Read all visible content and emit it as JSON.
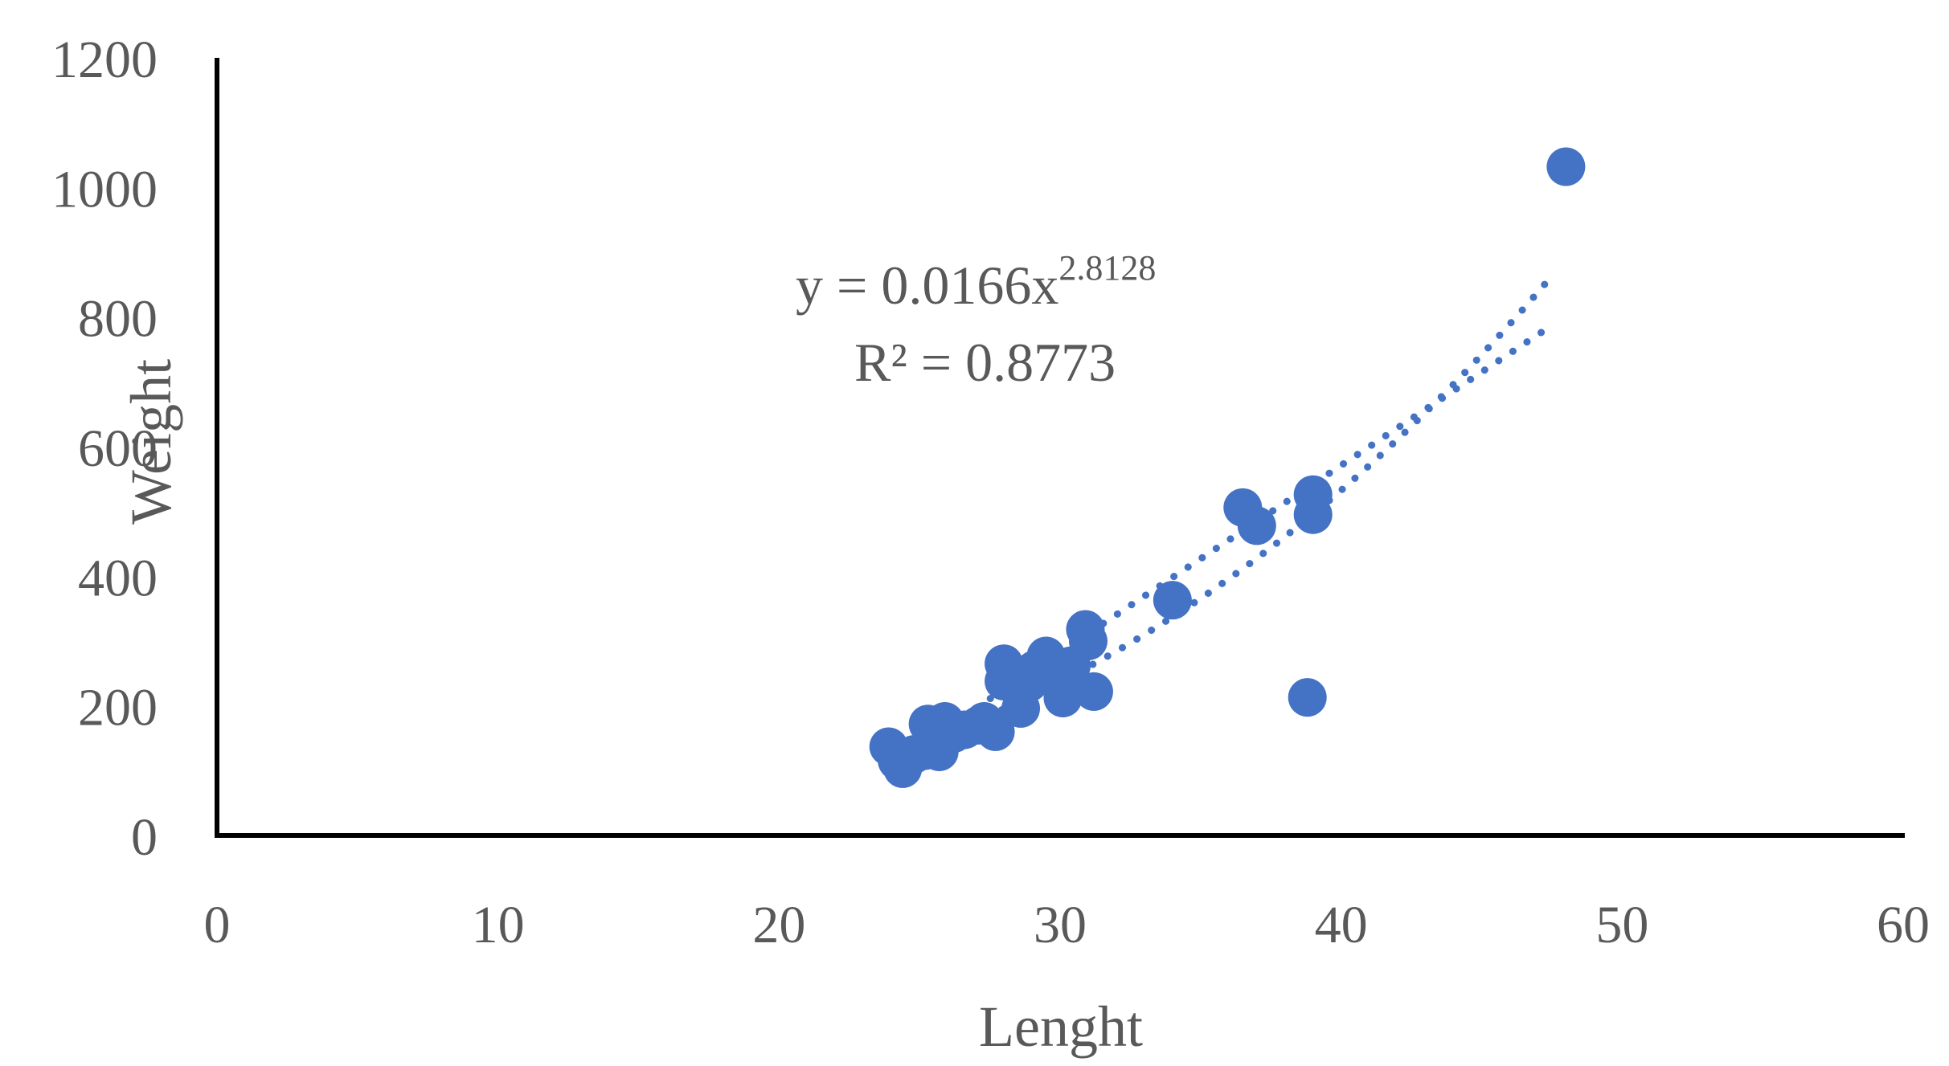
{
  "chart_data": {
    "type": "scatter",
    "xlabel": "Lenght",
    "ylabel": "Weight",
    "xlim": [
      0,
      60
    ],
    "ylim": [
      0,
      1200
    ],
    "x_ticks": [
      0,
      10,
      20,
      30,
      40,
      50,
      60
    ],
    "y_ticks": [
      0,
      200,
      400,
      600,
      800,
      1000,
      1200
    ],
    "x_tick_labels": [
      "0",
      "10",
      "20",
      "30",
      "40",
      "50",
      "60"
    ],
    "y_tick_labels": [
      "0",
      "200",
      "400",
      "600",
      "800",
      "1000",
      "1200"
    ],
    "grid": false,
    "legend": "none",
    "marker_color": "#4472C4",
    "trendline_color": "#4472C4",
    "text_color": "#595959",
    "axis_color": "#000000",
    "points": [
      {
        "x": 23.9,
        "y": 137
      },
      {
        "x": 24.2,
        "y": 115
      },
      {
        "x": 24.4,
        "y": 103
      },
      {
        "x": 24.8,
        "y": 125
      },
      {
        "x": 25.2,
        "y": 131
      },
      {
        "x": 25.3,
        "y": 172
      },
      {
        "x": 25.6,
        "y": 145
      },
      {
        "x": 25.7,
        "y": 129
      },
      {
        "x": 25.9,
        "y": 176
      },
      {
        "x": 26.2,
        "y": 157
      },
      {
        "x": 26.6,
        "y": 163
      },
      {
        "x": 27.1,
        "y": 170
      },
      {
        "x": 27.3,
        "y": 176
      },
      {
        "x": 27.7,
        "y": 160
      },
      {
        "x": 28.0,
        "y": 265
      },
      {
        "x": 28.0,
        "y": 238
      },
      {
        "x": 28.3,
        "y": 248
      },
      {
        "x": 28.6,
        "y": 196
      },
      {
        "x": 28.9,
        "y": 236
      },
      {
        "x": 29.1,
        "y": 256
      },
      {
        "x": 29.5,
        "y": 277
      },
      {
        "x": 29.8,
        "y": 244
      },
      {
        "x": 30.1,
        "y": 212
      },
      {
        "x": 30.4,
        "y": 262
      },
      {
        "x": 30.9,
        "y": 318
      },
      {
        "x": 31.0,
        "y": 300
      },
      {
        "x": 31.2,
        "y": 222
      },
      {
        "x": 34.0,
        "y": 363
      },
      {
        "x": 36.5,
        "y": 506
      },
      {
        "x": 37.0,
        "y": 478
      },
      {
        "x": 38.8,
        "y": 213
      },
      {
        "x": 39.0,
        "y": 526
      },
      {
        "x": 39.0,
        "y": 495
      },
      {
        "x": 48.0,
        "y": 1032
      }
    ],
    "trendlines": [
      {
        "type": "power",
        "coefficient": 0.0166,
        "exponent": 2.8128,
        "x_range": [
          24.0,
          47.6
        ]
      },
      {
        "type": "linear",
        "x_range": [
          24.0,
          47.6
        ],
        "y_range": [
          110,
          790
        ]
      }
    ],
    "annotations": {
      "equation_main": "y = 0.0166x",
      "equation_exponent": "2.8128",
      "r_squared": "R² = 0.8773"
    }
  }
}
